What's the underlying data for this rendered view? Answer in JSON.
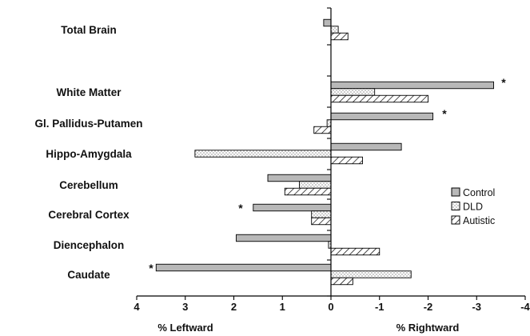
{
  "chart_data": {
    "type": "bar",
    "orientation": "horizontal",
    "categories": [
      "Total Brain",
      "White Matter",
      "Gl. Pallidus-Putamen",
      "Hippo-Amygdala",
      "Cerebellum",
      "Cerebral Cortex",
      "Diencephalon",
      "Caudate"
    ],
    "series": [
      {
        "name": "Control",
        "pattern": "solid-gray",
        "values": [
          0.15,
          -3.35,
          -2.1,
          -1.45,
          1.3,
          1.6,
          1.95,
          3.6
        ]
      },
      {
        "name": "DLD",
        "pattern": "dotted",
        "values": [
          -0.15,
          -0.9,
          0.08,
          2.8,
          0.65,
          0.4,
          0.05,
          -1.65
        ]
      },
      {
        "name": "Autistic",
        "pattern": "diagonal-hatch",
        "values": [
          -0.35,
          -2.0,
          0.35,
          -0.65,
          0.95,
          0.4,
          -1.0,
          -0.45
        ]
      }
    ],
    "xlim": [
      4,
      -4
    ],
    "xticks": [
      "4",
      "3",
      "2",
      "1",
      "0",
      "-1",
      "-2",
      "-3",
      "-4"
    ],
    "xlabel_left": "% Leftward",
    "xlabel_right": "% Rightward",
    "significance": [
      {
        "category": "White Matter",
        "marker": "*",
        "side": "right"
      },
      {
        "category": "Gl. Pallidus-Putamen",
        "marker": "*",
        "side": "right"
      },
      {
        "category": "Cerebral Cortex",
        "marker": "*",
        "side": "left"
      },
      {
        "category": "Caudate",
        "marker": "*",
        "side": "left"
      }
    ],
    "legend_position": "right",
    "grid": false,
    "colors": {
      "control_fill": "#b8b8b8",
      "outline": "#000000",
      "background": "#ffffff"
    }
  }
}
